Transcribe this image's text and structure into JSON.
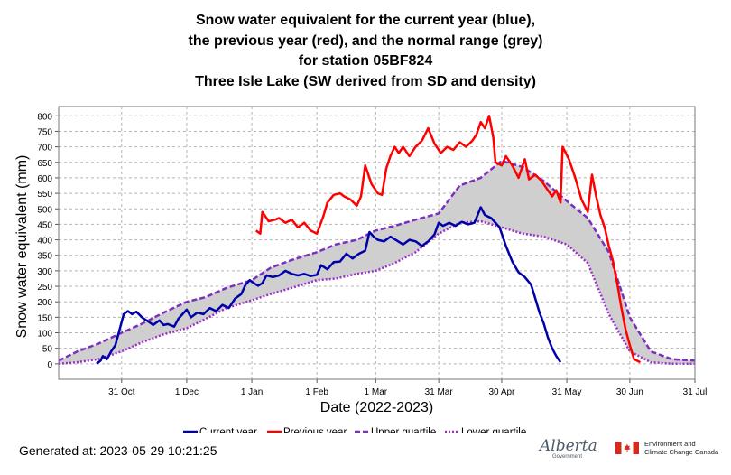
{
  "title_lines": [
    "Snow water equivalent for the current year (blue),",
    "the previous year (red), and the normal range (grey)",
    "for station 05BF824",
    "Three Isle Lake (SW derived from SD and density)"
  ],
  "footer": {
    "generated": "Generated at: 2023-05-29 10:21:25"
  },
  "logos": {
    "alberta": "Alberta",
    "alberta_sub": "Government",
    "eccc_line1": "Environment and",
    "eccc_line2": "Climate Change Canada"
  },
  "chart_data": {
    "type": "line",
    "xlabel": "Date (2022-2023)",
    "ylabel": "Snow water equivalent (mm)",
    "x_type": "date",
    "xlim": [
      "2022-10-01",
      "2023-07-31"
    ],
    "ylim": [
      -50,
      830
    ],
    "grid": true,
    "legend_position": "bottom",
    "colors": {
      "current": "#0000a8",
      "previous": "#ff0000",
      "upper": "#7b2fbe",
      "lower": "#9b30c9",
      "band": "#cfcfcf"
    },
    "x_ticks": [
      {
        "date": "2022-10-31",
        "label": "31 Oct"
      },
      {
        "date": "2022-12-01",
        "label": "1 Dec"
      },
      {
        "date": "2023-01-01",
        "label": "1 Jan"
      },
      {
        "date": "2023-02-01",
        "label": "1 Feb"
      },
      {
        "date": "2023-03-01",
        "label": "1 Mar"
      },
      {
        "date": "2023-03-31",
        "label": "31 Mar"
      },
      {
        "date": "2023-04-30",
        "label": "30 Apr"
      },
      {
        "date": "2023-05-31",
        "label": "31 May"
      },
      {
        "date": "2023-06-30",
        "label": "30 Jun"
      },
      {
        "date": "2023-07-31",
        "label": "31 Jul"
      }
    ],
    "y_ticks": [
      0,
      50,
      100,
      150,
      200,
      250,
      300,
      350,
      400,
      450,
      500,
      550,
      600,
      650,
      700,
      750,
      800
    ],
    "series": [
      {
        "name": "Current year",
        "key": "current",
        "style": "solid",
        "points": [
          [
            "2022-10-19",
            0
          ],
          [
            "2022-10-21",
            10
          ],
          [
            "2022-10-22",
            25
          ],
          [
            "2022-10-24",
            15
          ],
          [
            "2022-10-26",
            40
          ],
          [
            "2022-10-28",
            60
          ],
          [
            "2022-10-30",
            110
          ],
          [
            "2022-11-01",
            160
          ],
          [
            "2022-11-03",
            170
          ],
          [
            "2022-11-05",
            160
          ],
          [
            "2022-11-07",
            168
          ],
          [
            "2022-11-10",
            148
          ],
          [
            "2022-11-13",
            135
          ],
          [
            "2022-11-15",
            125
          ],
          [
            "2022-11-18",
            140
          ],
          [
            "2022-11-20",
            125
          ],
          [
            "2022-11-22",
            128
          ],
          [
            "2022-11-25",
            120
          ],
          [
            "2022-11-27",
            145
          ],
          [
            "2022-11-29",
            160
          ],
          [
            "2022-12-01",
            175
          ],
          [
            "2022-12-03",
            150
          ],
          [
            "2022-12-06",
            165
          ],
          [
            "2022-12-09",
            160
          ],
          [
            "2022-12-12",
            180
          ],
          [
            "2022-12-15",
            170
          ],
          [
            "2022-12-18",
            190
          ],
          [
            "2022-12-21",
            180
          ],
          [
            "2022-12-24",
            210
          ],
          [
            "2022-12-27",
            225
          ],
          [
            "2022-12-29",
            255
          ],
          [
            "2022-12-31",
            270
          ],
          [
            "2023-01-02",
            260
          ],
          [
            "2023-01-04",
            252
          ],
          [
            "2023-01-06",
            260
          ],
          [
            "2023-01-08",
            285
          ],
          [
            "2023-01-11",
            280
          ],
          [
            "2023-01-14",
            285
          ],
          [
            "2023-01-17",
            300
          ],
          [
            "2023-01-20",
            290
          ],
          [
            "2023-01-23",
            285
          ],
          [
            "2023-01-26",
            290
          ],
          [
            "2023-01-29",
            283
          ],
          [
            "2023-02-01",
            287
          ],
          [
            "2023-02-03",
            318
          ],
          [
            "2023-02-06",
            305
          ],
          [
            "2023-02-09",
            328
          ],
          [
            "2023-02-12",
            330
          ],
          [
            "2023-02-15",
            355
          ],
          [
            "2023-02-18",
            340
          ],
          [
            "2023-02-21",
            355
          ],
          [
            "2023-02-24",
            365
          ],
          [
            "2023-02-26",
            425
          ],
          [
            "2023-02-28",
            410
          ],
          [
            "2023-03-02",
            400
          ],
          [
            "2023-03-05",
            395
          ],
          [
            "2023-03-08",
            410
          ],
          [
            "2023-03-11",
            398
          ],
          [
            "2023-03-14",
            385
          ],
          [
            "2023-03-17",
            400
          ],
          [
            "2023-03-20",
            395
          ],
          [
            "2023-03-23",
            380
          ],
          [
            "2023-03-26",
            395
          ],
          [
            "2023-03-29",
            418
          ],
          [
            "2023-03-31",
            455
          ],
          [
            "2023-04-02",
            445
          ],
          [
            "2023-04-05",
            455
          ],
          [
            "2023-04-08",
            445
          ],
          [
            "2023-04-11",
            458
          ],
          [
            "2023-04-14",
            450
          ],
          [
            "2023-04-17",
            455
          ],
          [
            "2023-04-20",
            505
          ],
          [
            "2023-04-22",
            480
          ],
          [
            "2023-04-25",
            470
          ],
          [
            "2023-04-27",
            455
          ],
          [
            "2023-04-29",
            440
          ],
          [
            "2023-05-02",
            380
          ],
          [
            "2023-05-05",
            330
          ],
          [
            "2023-05-08",
            295
          ],
          [
            "2023-05-11",
            280
          ],
          [
            "2023-05-14",
            255
          ],
          [
            "2023-05-16",
            210
          ],
          [
            "2023-05-18",
            165
          ],
          [
            "2023-05-20",
            130
          ],
          [
            "2023-05-22",
            85
          ],
          [
            "2023-05-24",
            50
          ],
          [
            "2023-05-26",
            25
          ],
          [
            "2023-05-28",
            5
          ]
        ]
      },
      {
        "name": "Previous year",
        "key": "previous",
        "style": "solid",
        "points": [
          [
            "2023-01-03",
            430
          ],
          [
            "2023-01-05",
            420
          ],
          [
            "2023-01-06",
            490
          ],
          [
            "2023-01-09",
            460
          ],
          [
            "2023-01-12",
            465
          ],
          [
            "2023-01-14",
            470
          ],
          [
            "2023-01-17",
            455
          ],
          [
            "2023-01-20",
            465
          ],
          [
            "2023-01-23",
            440
          ],
          [
            "2023-01-26",
            455
          ],
          [
            "2023-01-29",
            430
          ],
          [
            "2023-02-01",
            420
          ],
          [
            "2023-02-04",
            475
          ],
          [
            "2023-02-06",
            520
          ],
          [
            "2023-02-09",
            545
          ],
          [
            "2023-02-12",
            550
          ],
          [
            "2023-02-14",
            540
          ],
          [
            "2023-02-17",
            530
          ],
          [
            "2023-02-20",
            510
          ],
          [
            "2023-02-22",
            540
          ],
          [
            "2023-02-24",
            640
          ],
          [
            "2023-02-27",
            580
          ],
          [
            "2023-03-02",
            550
          ],
          [
            "2023-03-04",
            545
          ],
          [
            "2023-03-06",
            630
          ],
          [
            "2023-03-08",
            670
          ],
          [
            "2023-03-10",
            700
          ],
          [
            "2023-03-12",
            680
          ],
          [
            "2023-03-14",
            700
          ],
          [
            "2023-03-17",
            670
          ],
          [
            "2023-03-20",
            700
          ],
          [
            "2023-03-23",
            720
          ],
          [
            "2023-03-26",
            760
          ],
          [
            "2023-03-29",
            710
          ],
          [
            "2023-04-01",
            680
          ],
          [
            "2023-04-04",
            700
          ],
          [
            "2023-04-07",
            690
          ],
          [
            "2023-04-10",
            715
          ],
          [
            "2023-04-13",
            700
          ],
          [
            "2023-04-16",
            720
          ],
          [
            "2023-04-18",
            740
          ],
          [
            "2023-04-20",
            780
          ],
          [
            "2023-04-22",
            760
          ],
          [
            "2023-04-24",
            800
          ],
          [
            "2023-04-26",
            730
          ],
          [
            "2023-04-27",
            650
          ],
          [
            "2023-04-30",
            640
          ],
          [
            "2023-05-02",
            670
          ],
          [
            "2023-05-05",
            640
          ],
          [
            "2023-05-08",
            600
          ],
          [
            "2023-05-11",
            660
          ],
          [
            "2023-05-13",
            595
          ],
          [
            "2023-05-16",
            610
          ],
          [
            "2023-05-19",
            590
          ],
          [
            "2023-05-22",
            560
          ],
          [
            "2023-05-24",
            540
          ],
          [
            "2023-05-26",
            560
          ],
          [
            "2023-05-28",
            520
          ],
          [
            "2023-05-29",
            700
          ],
          [
            "2023-06-01",
            660
          ],
          [
            "2023-06-04",
            600
          ],
          [
            "2023-06-07",
            530
          ],
          [
            "2023-06-10",
            490
          ],
          [
            "2023-06-12",
            610
          ],
          [
            "2023-06-14",
            540
          ],
          [
            "2023-06-16",
            480
          ],
          [
            "2023-06-18",
            440
          ],
          [
            "2023-06-20",
            380
          ],
          [
            "2023-06-22",
            330
          ],
          [
            "2023-06-24",
            260
          ],
          [
            "2023-06-26",
            180
          ],
          [
            "2023-06-28",
            110
          ],
          [
            "2023-06-30",
            60
          ],
          [
            "2023-07-02",
            15
          ],
          [
            "2023-07-05",
            5
          ]
        ]
      },
      {
        "name": "Upper quartile",
        "key": "upper",
        "style": "dashed",
        "points": [
          [
            "2022-10-01",
            10
          ],
          [
            "2022-10-10",
            40
          ],
          [
            "2022-10-20",
            65
          ],
          [
            "2022-10-31",
            100
          ],
          [
            "2022-11-10",
            130
          ],
          [
            "2022-11-20",
            165
          ],
          [
            "2022-12-01",
            200
          ],
          [
            "2022-12-10",
            215
          ],
          [
            "2022-12-20",
            245
          ],
          [
            "2023-01-01",
            270
          ],
          [
            "2023-01-10",
            310
          ],
          [
            "2023-01-20",
            335
          ],
          [
            "2023-02-01",
            360
          ],
          [
            "2023-02-10",
            385
          ],
          [
            "2023-02-20",
            400
          ],
          [
            "2023-03-01",
            430
          ],
          [
            "2023-03-10",
            445
          ],
          [
            "2023-03-20",
            465
          ],
          [
            "2023-03-31",
            485
          ],
          [
            "2023-04-10",
            575
          ],
          [
            "2023-04-20",
            600
          ],
          [
            "2023-04-30",
            655
          ],
          [
            "2023-05-10",
            635
          ],
          [
            "2023-05-20",
            590
          ],
          [
            "2023-05-31",
            525
          ],
          [
            "2023-06-10",
            470
          ],
          [
            "2023-06-20",
            360
          ],
          [
            "2023-06-30",
            150
          ],
          [
            "2023-07-10",
            40
          ],
          [
            "2023-07-20",
            15
          ],
          [
            "2023-07-31",
            10
          ]
        ]
      },
      {
        "name": "Lower quartile",
        "key": "lower",
        "style": "dotted",
        "points": [
          [
            "2022-10-01",
            0
          ],
          [
            "2022-10-10",
            5
          ],
          [
            "2022-10-20",
            15
          ],
          [
            "2022-10-31",
            40
          ],
          [
            "2022-11-10",
            70
          ],
          [
            "2022-11-20",
            95
          ],
          [
            "2022-12-01",
            115
          ],
          [
            "2022-12-10",
            145
          ],
          [
            "2022-12-20",
            180
          ],
          [
            "2023-01-01",
            205
          ],
          [
            "2023-01-10",
            225
          ],
          [
            "2023-01-20",
            245
          ],
          [
            "2023-02-01",
            270
          ],
          [
            "2023-02-10",
            275
          ],
          [
            "2023-02-20",
            290
          ],
          [
            "2023-03-01",
            300
          ],
          [
            "2023-03-10",
            325
          ],
          [
            "2023-03-20",
            360
          ],
          [
            "2023-03-31",
            420
          ],
          [
            "2023-04-10",
            455
          ],
          [
            "2023-04-20",
            460
          ],
          [
            "2023-04-30",
            440
          ],
          [
            "2023-05-10",
            420
          ],
          [
            "2023-05-20",
            410
          ],
          [
            "2023-05-31",
            385
          ],
          [
            "2023-06-10",
            325
          ],
          [
            "2023-06-20",
            160
          ],
          [
            "2023-06-30",
            40
          ],
          [
            "2023-07-10",
            5
          ],
          [
            "2023-07-20",
            0
          ],
          [
            "2023-07-31",
            0
          ]
        ]
      }
    ]
  }
}
